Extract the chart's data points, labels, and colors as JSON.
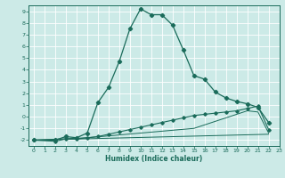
{
  "title": "",
  "xlabel": "Humidex (Indice chaleur)",
  "bg_color": "#cceae7",
  "line_color": "#1a6b5a",
  "grid_color": "#ffffff",
  "xlim": [
    -0.5,
    23
  ],
  "ylim": [
    -2.5,
    9.5
  ],
  "xticks": [
    0,
    1,
    2,
    3,
    4,
    5,
    6,
    7,
    8,
    9,
    10,
    11,
    12,
    13,
    14,
    15,
    16,
    17,
    18,
    19,
    20,
    21,
    22,
    23
  ],
  "yticks": [
    -2,
    -1,
    0,
    1,
    2,
    3,
    4,
    5,
    6,
    7,
    8,
    9
  ],
  "curve1_x": [
    0,
    2,
    3,
    4,
    5,
    6,
    7,
    8,
    9,
    10,
    11,
    12,
    13,
    14,
    15,
    16,
    17,
    18,
    19,
    20,
    21,
    22
  ],
  "curve1_y": [
    -2.0,
    -2.0,
    -1.7,
    -1.8,
    -1.4,
    1.2,
    2.5,
    4.7,
    7.5,
    9.2,
    8.7,
    8.7,
    7.8,
    5.7,
    3.5,
    3.2,
    2.1,
    1.6,
    1.3,
    1.1,
    0.8,
    -0.5
  ],
  "curve2_x": [
    0,
    2,
    3,
    4,
    5,
    6,
    7,
    8,
    9,
    10,
    11,
    12,
    13,
    14,
    15,
    16,
    17,
    18,
    19,
    20,
    21,
    22
  ],
  "curve2_y": [
    -2.0,
    -2.1,
    -1.9,
    -1.9,
    -1.8,
    -1.7,
    -1.5,
    -1.3,
    -1.1,
    -0.9,
    -0.7,
    -0.5,
    -0.3,
    -0.1,
    0.1,
    0.2,
    0.3,
    0.4,
    0.5,
    0.7,
    0.9,
    -1.1
  ],
  "curve3_x": [
    0,
    5,
    10,
    15,
    20,
    21,
    22
  ],
  "curve3_y": [
    -2.0,
    -1.8,
    -1.4,
    -1.0,
    0.5,
    0.4,
    -1.4
  ],
  "curve4_x": [
    0,
    22
  ],
  "curve4_y": [
    -2.0,
    -1.5
  ]
}
